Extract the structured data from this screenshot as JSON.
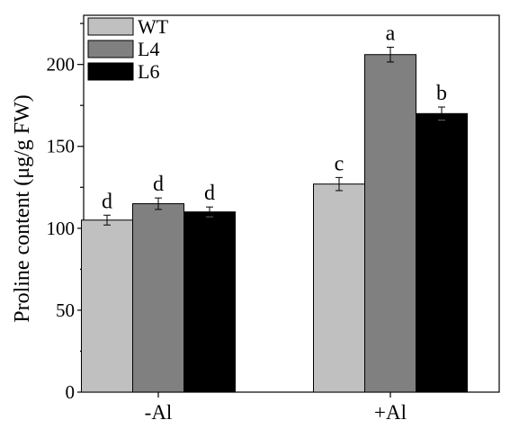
{
  "chart_data": {
    "type": "bar",
    "categories": [
      "-Al",
      "+Al"
    ],
    "series": [
      {
        "name": "WT",
        "color": "#c0c0c0",
        "values": [
          105,
          127
        ],
        "errors": [
          3,
          4
        ],
        "letters": [
          "d",
          "c"
        ]
      },
      {
        "name": "L4",
        "color": "#808080",
        "values": [
          115,
          206
        ],
        "errors": [
          3.5,
          4.5
        ],
        "letters": [
          "d",
          "a"
        ]
      },
      {
        "name": "L6",
        "color": "#000000",
        "values": [
          110,
          170
        ],
        "errors": [
          3,
          4
        ],
        "letters": [
          "d",
          "b"
        ]
      }
    ],
    "ylabel": "Proline content (μg/g FW)",
    "xlabel": "",
    "ylim": [
      0,
      230
    ],
    "yticks": [
      0,
      50,
      100,
      150,
      200
    ],
    "legend_position": "top-left",
    "grid": false
  }
}
